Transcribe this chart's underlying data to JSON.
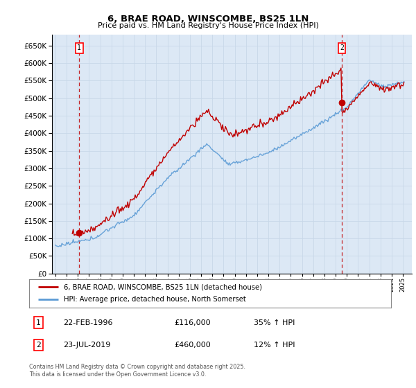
{
  "title": "6, BRAE ROAD, WINSCOMBE, BS25 1LN",
  "subtitle": "Price paid vs. HM Land Registry's House Price Index (HPI)",
  "ylim": [
    0,
    680000
  ],
  "yticks": [
    0,
    50000,
    100000,
    150000,
    200000,
    250000,
    300000,
    350000,
    400000,
    450000,
    500000,
    550000,
    600000,
    650000
  ],
  "xlim_start": 1993.7,
  "xlim_end": 2025.8,
  "sale1_year": 1996.13,
  "sale1_price": 116000,
  "sale1_label": "1",
  "sale1_date": "22-FEB-1996",
  "sale1_hpi": "35% ↑ HPI",
  "sale2_year": 2019.55,
  "sale2_price": 460000,
  "sale2_label": "2",
  "sale2_date": "23-JUL-2019",
  "sale2_hpi": "12% ↑ HPI",
  "hpi_line_color": "#5b9bd5",
  "price_line_color": "#c00000",
  "dashed_line_color": "#c00000",
  "grid_color": "#c8d8e8",
  "chart_bg_color": "#dce8f5",
  "background_color": "#ffffff",
  "legend_label_price": "6, BRAE ROAD, WINSCOMBE, BS25 1LN (detached house)",
  "legend_label_hpi": "HPI: Average price, detached house, North Somerset",
  "footer": "Contains HM Land Registry data © Crown copyright and database right 2025.\nThis data is licensed under the Open Government Licence v3.0."
}
